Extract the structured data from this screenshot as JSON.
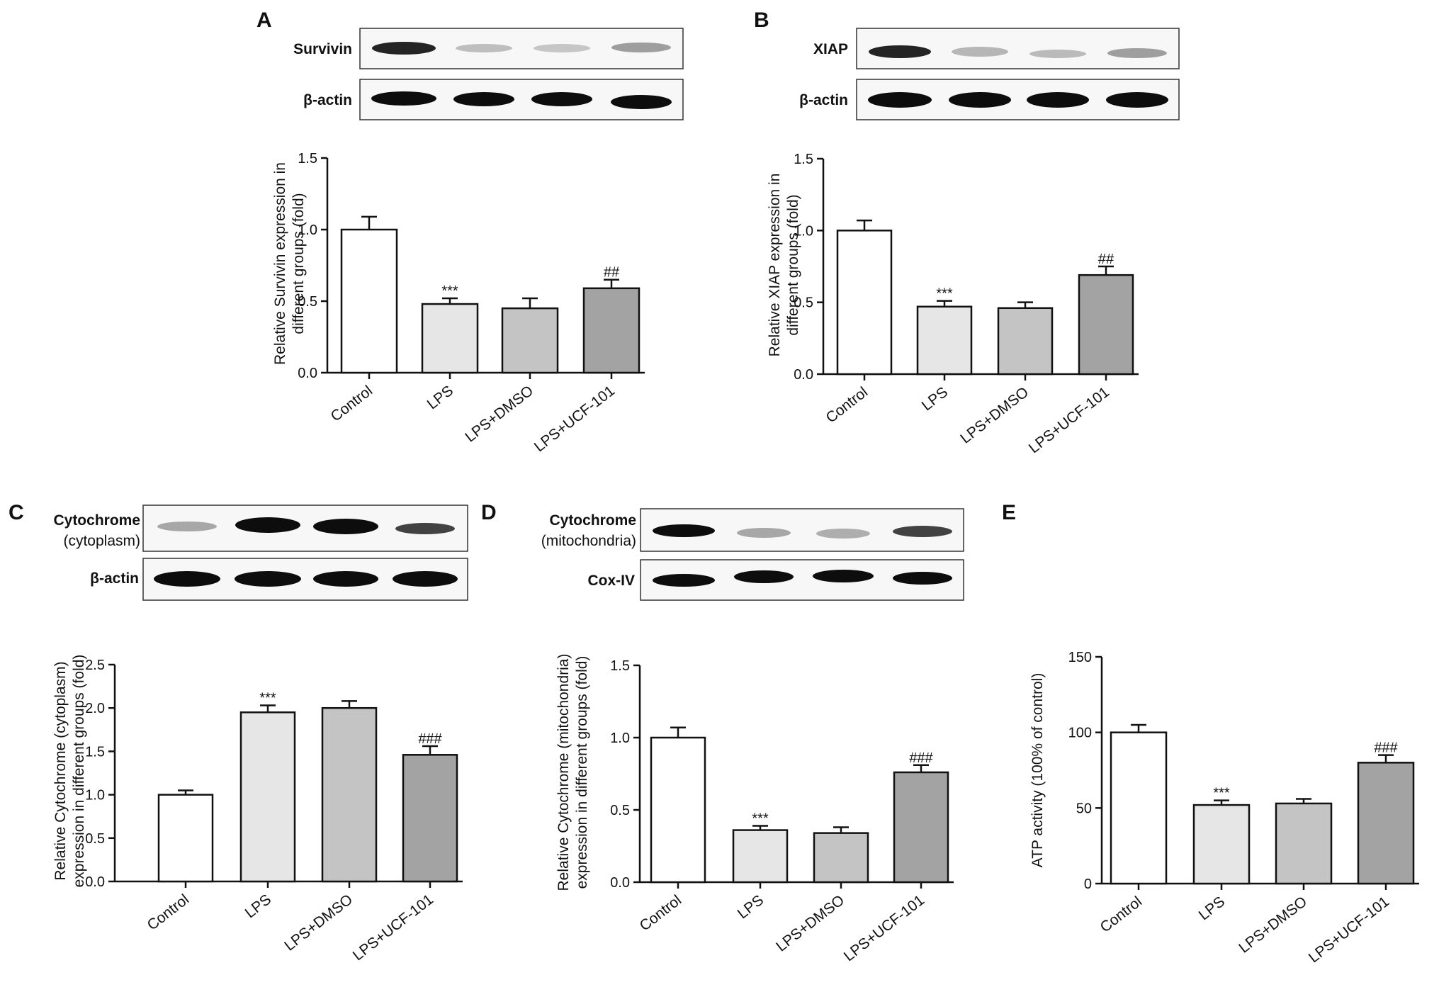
{
  "figure": {
    "group_labels": [
      "Control",
      "LPS",
      "LPS+DMSO",
      "LPS+UCF-101"
    ],
    "bar_colors": [
      "#ffffff",
      "#e6e6e6",
      "#c4c4c4",
      "#a3a3a3"
    ]
  },
  "chart_data": [
    {
      "panel": "A",
      "type": "bar",
      "blot_labels": [
        "Survivin",
        "β-actin"
      ],
      "categories": [
        "Control",
        "LPS",
        "LPS+DMSO",
        "LPS+UCF-101"
      ],
      "values": [
        1.0,
        0.48,
        0.45,
        0.59
      ],
      "errors": [
        0.09,
        0.04,
        0.07,
        0.06
      ],
      "annotations": [
        "",
        "***",
        "",
        "##"
      ],
      "ylabel": [
        "Relative Survivin expression in",
        "different groups (fold)"
      ],
      "ylim": [
        0,
        1.5
      ],
      "yticks": [
        0.0,
        0.5,
        1.0,
        1.5
      ],
      "ytick_labels": [
        "0.0",
        "0.5",
        "1.0",
        "1.5"
      ]
    },
    {
      "panel": "B",
      "type": "bar",
      "blot_labels": [
        "XIAP",
        "β-actin"
      ],
      "categories": [
        "Control",
        "LPS",
        "LPS+DMSO",
        "LPS+UCF-101"
      ],
      "values": [
        1.0,
        0.47,
        0.46,
        0.69
      ],
      "errors": [
        0.07,
        0.04,
        0.04,
        0.06
      ],
      "annotations": [
        "",
        "***",
        "",
        "##"
      ],
      "ylabel": [
        "Relative XIAP expression in",
        "different groups (fold)"
      ],
      "ylim": [
        0,
        1.5
      ],
      "yticks": [
        0.0,
        0.5,
        1.0,
        1.5
      ],
      "ytick_labels": [
        "0.0",
        "0.5",
        "1.0",
        "1.5"
      ]
    },
    {
      "panel": "C",
      "type": "bar",
      "blot_labels": [
        "Cytochrome",
        "(cytoplasm)",
        "β-actin"
      ],
      "categories": [
        "Control",
        "LPS",
        "LPS+DMSO",
        "LPS+UCF-101"
      ],
      "values": [
        1.0,
        1.95,
        2.0,
        1.46
      ],
      "errors": [
        0.05,
        0.08,
        0.08,
        0.1
      ],
      "annotations": [
        "",
        "***",
        "",
        "###"
      ],
      "ylabel": [
        "Relative Cytochrome (cytoplasm)",
        "expression in different groups (fold)"
      ],
      "ylim": [
        0,
        2.5
      ],
      "yticks": [
        0.0,
        0.5,
        1.0,
        1.5,
        2.0,
        2.5
      ],
      "ytick_labels": [
        "0.0",
        "0.5",
        "1.0",
        "1.5",
        "2.0",
        "2.5"
      ]
    },
    {
      "panel": "D",
      "type": "bar",
      "blot_labels": [
        "Cytochrome",
        "(mitochondria)",
        "Cox-IV"
      ],
      "categories": [
        "Control",
        "LPS",
        "LPS+DMSO",
        "LPS+UCF-101"
      ],
      "values": [
        1.0,
        0.36,
        0.34,
        0.76
      ],
      "errors": [
        0.07,
        0.03,
        0.04,
        0.05
      ],
      "annotations": [
        "",
        "***",
        "",
        "###"
      ],
      "ylabel": [
        "Relative Cytochrome (mitochondria)",
        "expression in different groups (fold)"
      ],
      "ylim": [
        0,
        1.5
      ],
      "yticks": [
        0.0,
        0.5,
        1.0,
        1.5
      ],
      "ytick_labels": [
        "0.0",
        "0.5",
        "1.0",
        "1.5"
      ]
    },
    {
      "panel": "E",
      "type": "bar",
      "blot_labels": [],
      "categories": [
        "Control",
        "LPS",
        "LPS+DMSO",
        "LPS+UCF-101"
      ],
      "values": [
        100,
        52,
        53,
        80
      ],
      "errors": [
        5,
        3,
        3,
        5
      ],
      "annotations": [
        "",
        "***",
        "",
        "###"
      ],
      "ylabel": [
        "ATP activity (100% of control)"
      ],
      "ylim": [
        0,
        150
      ],
      "yticks": [
        0,
        50,
        100,
        150
      ],
      "ytick_labels": [
        "0",
        "50",
        "100",
        "150"
      ]
    }
  ]
}
